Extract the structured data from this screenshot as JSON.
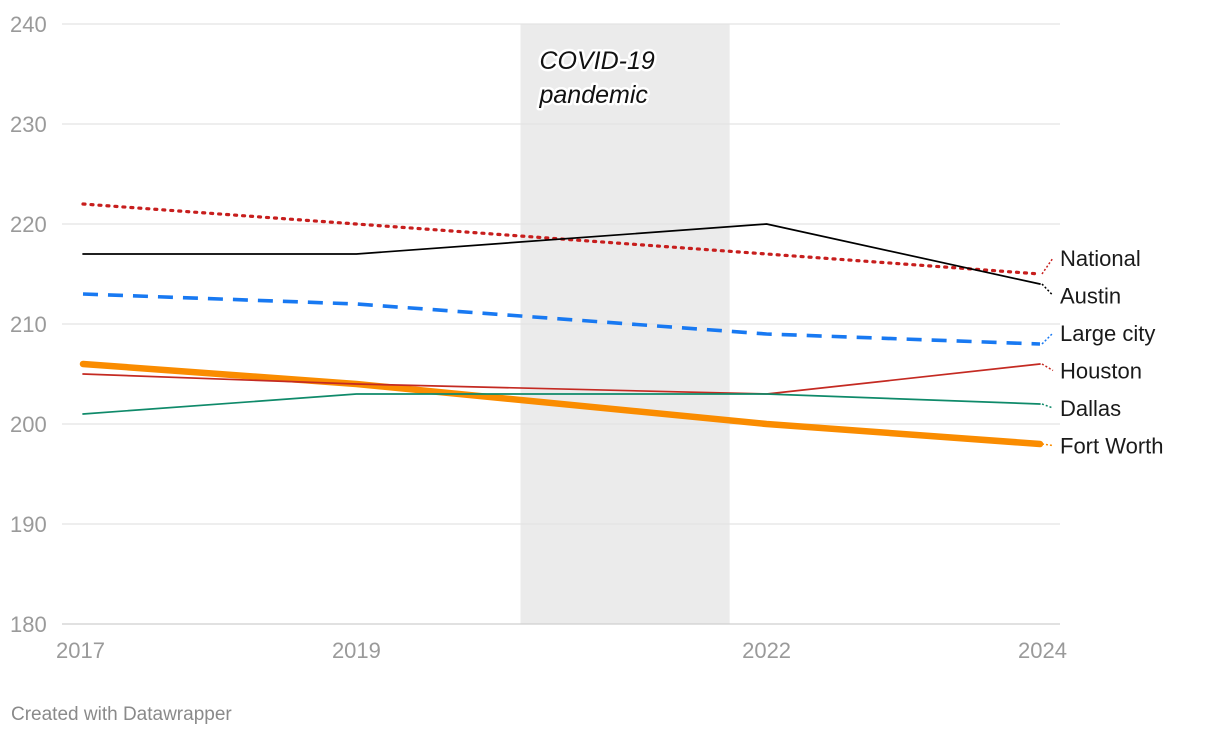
{
  "chart_data": {
    "type": "line",
    "title": "",
    "xlabel": "",
    "ylabel": "",
    "x": [
      2017,
      2019,
      2022,
      2024
    ],
    "x_tick_labels": [
      "2017",
      "2019",
      "2022",
      "2024"
    ],
    "ylim": [
      180,
      240
    ],
    "y_ticks": [
      180,
      190,
      200,
      210,
      220,
      230,
      240
    ],
    "y_tick_labels": [
      "180",
      "190",
      "200",
      "210",
      "220",
      "230",
      "240"
    ],
    "grid": true,
    "shaded_region": {
      "x_start": 2020.2,
      "x_end": 2021.73,
      "color": "#ebebeb",
      "label_lines": [
        "COVID-19",
        "pandemic"
      ]
    },
    "series": [
      {
        "name": "National",
        "values": [
          222,
          220,
          217,
          215
        ],
        "color": "#c71e1d",
        "style": "dotted"
      },
      {
        "name": "Austin",
        "values": [
          217,
          217,
          220,
          214
        ],
        "color": "#000000",
        "style": "solid-thin"
      },
      {
        "name": "Large city",
        "values": [
          213,
          212,
          209,
          208
        ],
        "color": "#1879f2",
        "style": "dashed"
      },
      {
        "name": "Houston",
        "values": [
          205,
          204,
          203,
          206
        ],
        "color": "#c42a22",
        "style": "solid-thin"
      },
      {
        "name": "Dallas",
        "values": [
          201,
          203,
          203,
          202
        ],
        "color": "#0f8a6a",
        "style": "solid-thin"
      },
      {
        "name": "Fort Worth",
        "values": [
          206,
          204,
          200,
          198
        ],
        "color": "#fa8c00",
        "style": "solid-thick"
      }
    ]
  },
  "footer": {
    "credit": "Created with Datawrapper"
  }
}
